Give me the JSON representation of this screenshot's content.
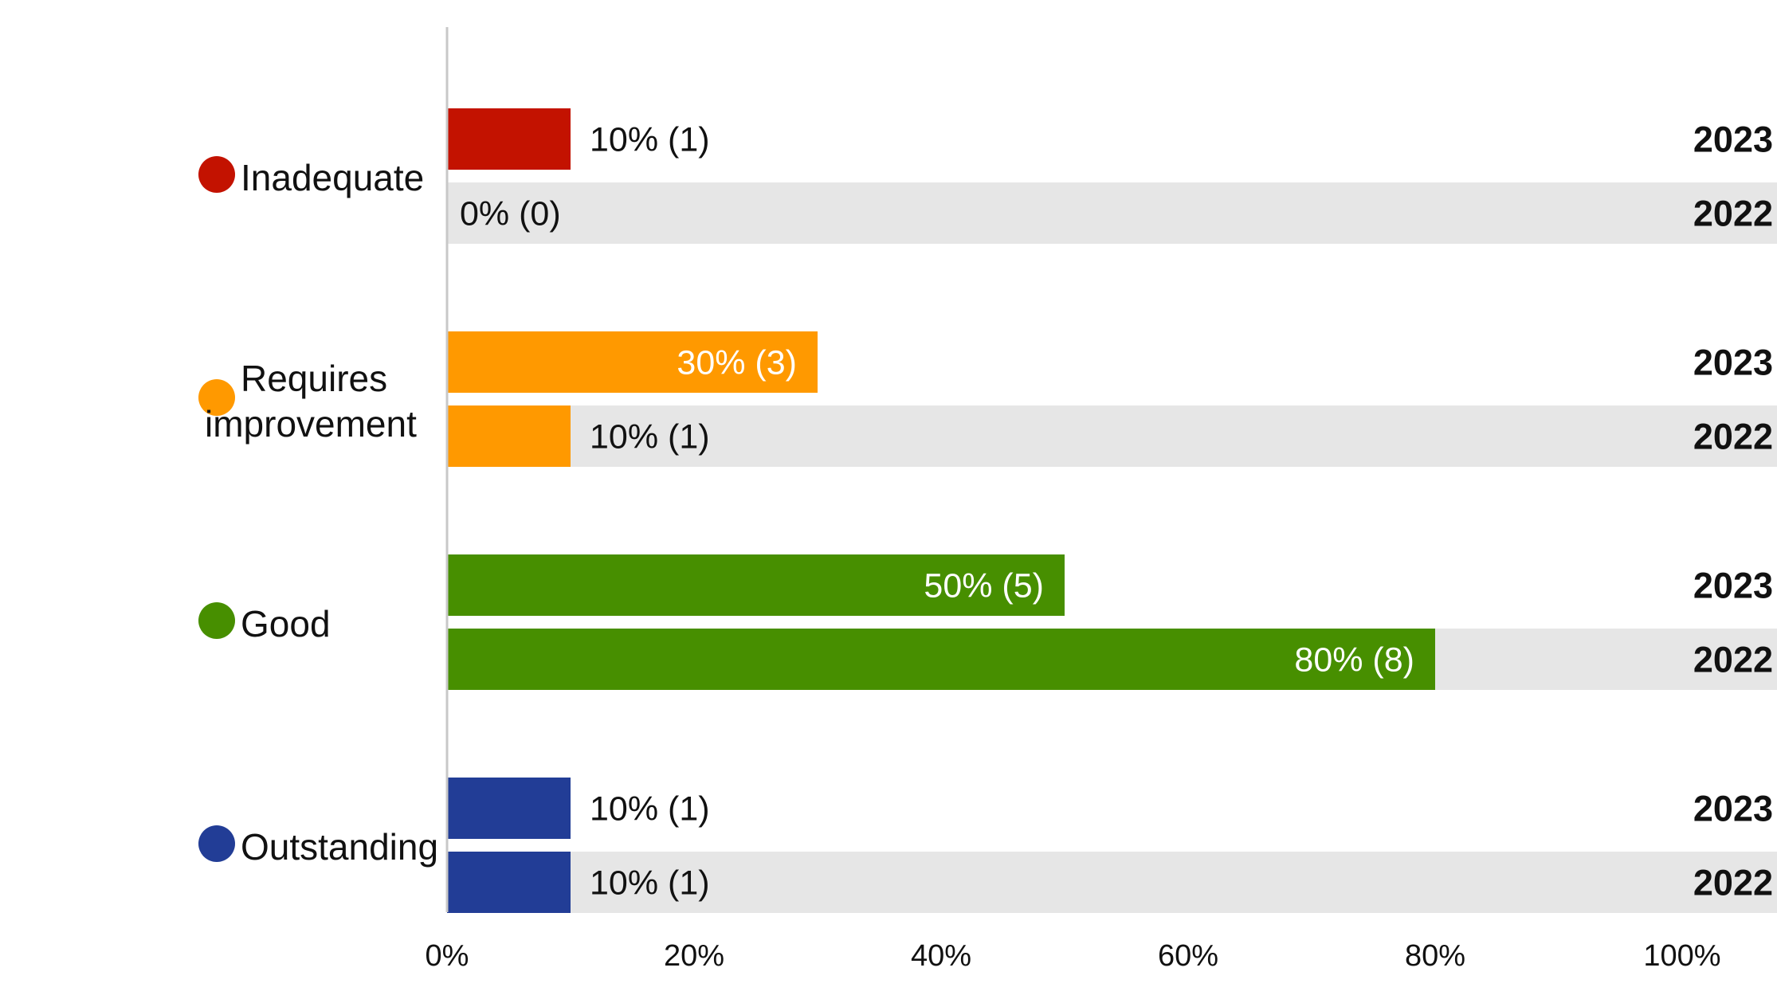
{
  "chart_data": {
    "type": "bar",
    "orientation": "horizontal",
    "title": "",
    "xlabel": "",
    "ylabel": "",
    "xlim": [
      0,
      100
    ],
    "ticks": [
      "0%",
      "20%",
      "40%",
      "60%",
      "80%",
      "100%"
    ],
    "tick_values": [
      0,
      20,
      40,
      60,
      80,
      100
    ],
    "grid": false,
    "legend": "none",
    "background_color": "#e6e6e6",
    "categories": [
      {
        "label": "Inadequate",
        "color": "#c31200",
        "bars": [
          {
            "year": "2023",
            "value": 10,
            "label": "10% (1)"
          },
          {
            "year": "2022",
            "value": 0,
            "label": "0% (0)"
          }
        ]
      },
      {
        "label": "Requires improvement",
        "color": "#ff9900",
        "bars": [
          {
            "year": "2023",
            "value": 30,
            "label": "30% (3)"
          },
          {
            "year": "2022",
            "value": 10,
            "label": "10% (1)"
          }
        ]
      },
      {
        "label": "Good",
        "color": "#478f00",
        "bars": [
          {
            "year": "2023",
            "value": 50,
            "label": "50% (5)"
          },
          {
            "year": "2022",
            "value": 80,
            "label": "80% (8)"
          }
        ]
      },
      {
        "label": "Outstanding",
        "color": "#223d96",
        "bars": [
          {
            "year": "2023",
            "value": 10,
            "label": "10% (1)"
          },
          {
            "year": "2022",
            "value": 10,
            "label": "10% (1)"
          }
        ]
      }
    ]
  }
}
